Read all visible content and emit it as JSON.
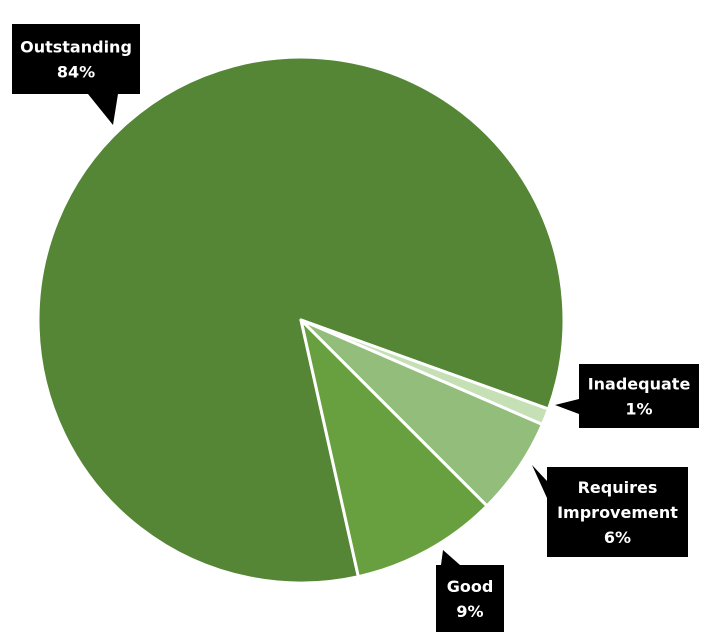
{
  "chart_data": {
    "type": "pie",
    "title": "",
    "slices": [
      {
        "name": "Outstanding",
        "label_lines": [
          "Outstanding",
          "84%"
        ],
        "value": 84,
        "color": "#548635"
      },
      {
        "name": "Inadequate",
        "label_lines": [
          "Inadequate",
          "1%"
        ],
        "value": 1,
        "color": "#c5e0b4"
      },
      {
        "name": "Requires Improvement",
        "label_lines": [
          "Requires",
          "Improvement",
          "6%"
        ],
        "value": 6,
        "color": "#92bd7b"
      },
      {
        "name": "Good",
        "label_lines": [
          "Good",
          "9%"
        ],
        "value": 9,
        "color": "#68a040"
      }
    ],
    "legend": "none",
    "data_labels": "callouts"
  }
}
